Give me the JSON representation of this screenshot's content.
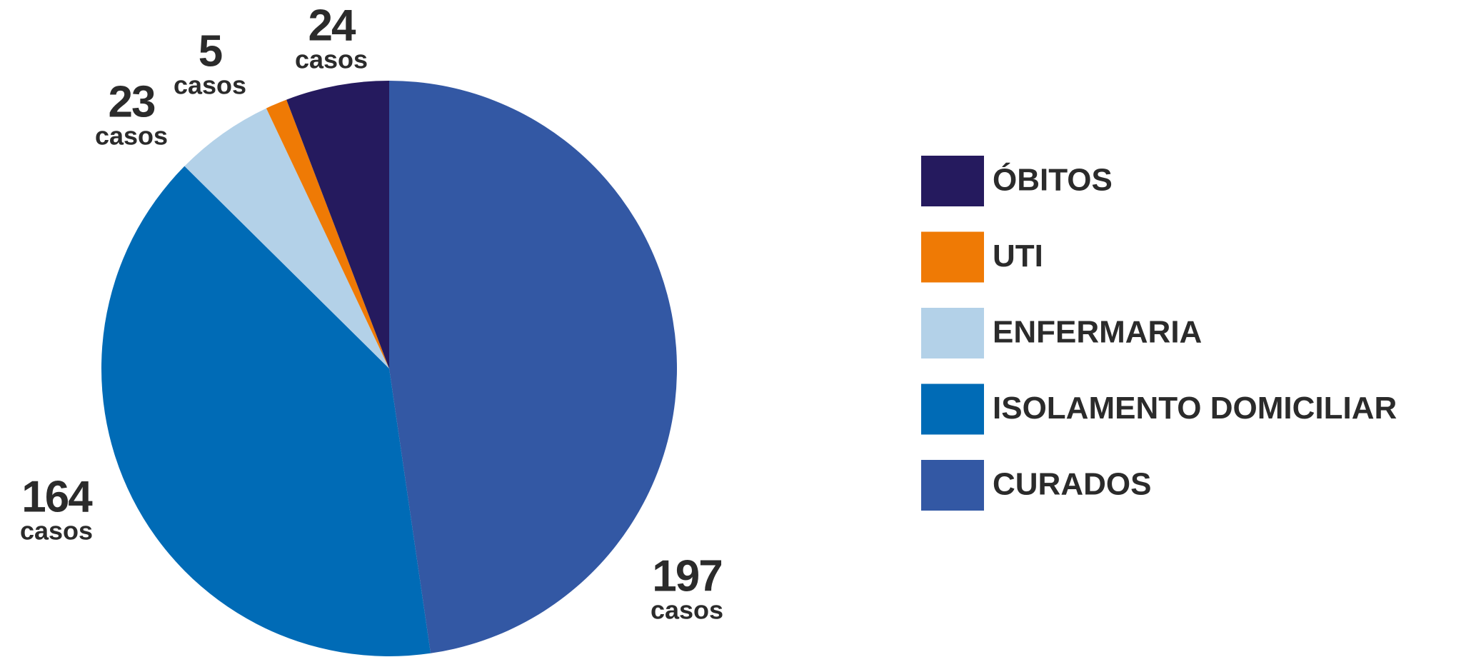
{
  "chart_data": {
    "type": "pie",
    "categories": [
      "ÓBITOS",
      "UTI",
      "ENFERMARIA",
      "ISOLAMENTO DOMICILIAR",
      "CURADOS"
    ],
    "values": [
      24,
      5,
      23,
      164,
      197
    ],
    "colors": [
      "#251a5e",
      "#ef7a05",
      "#b3d1e8",
      "#006bb6",
      "#3358a4"
    ],
    "unit_label": "casos",
    "legend": "right"
  }
}
